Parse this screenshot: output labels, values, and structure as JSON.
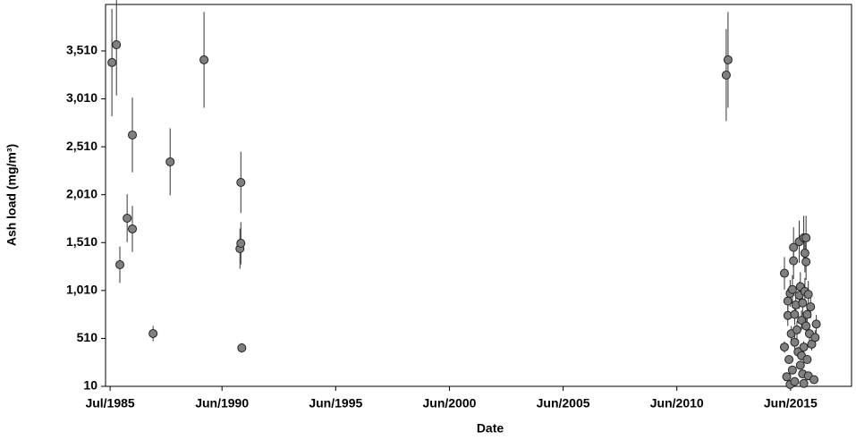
{
  "chart_data": {
    "type": "scatter",
    "x_label": "Date",
    "y_label": "Ash load (mg/m³)",
    "xlim": [
      1985.3,
      2018.1
    ],
    "ylim": [
      10,
      3995
    ],
    "xticks": [
      {
        "value": 1985.5,
        "label": "Jul/1985"
      },
      {
        "value": 1990.42,
        "label": "Jun/1990"
      },
      {
        "value": 1995.42,
        "label": "Jun/1995"
      },
      {
        "value": 2000.42,
        "label": "Jun/2000"
      },
      {
        "value": 2005.42,
        "label": "Jun/2005"
      },
      {
        "value": 2010.42,
        "label": "Jun/2010"
      },
      {
        "value": 2015.42,
        "label": "Jun/2015"
      }
    ],
    "yticks": [
      10,
      510,
      {
        "value": 1010,
        "label": "1,010"
      },
      {
        "value": 1510,
        "label": "1,510"
      },
      {
        "value": 2010,
        "label": "2,010"
      },
      {
        "value": 2510,
        "label": "2,510"
      },
      {
        "value": 3010,
        "label": "3,010"
      },
      {
        "value": 3510,
        "label": "3,510"
      }
    ],
    "series": [
      {
        "color": "#808080",
        "x": [
          1985.58,
          1985.78,
          1985.93,
          1986.25,
          1986.48,
          1986.48,
          1987.39,
          1988.14,
          1989.63,
          1991.25,
          1991.21,
          1991.25,
          1991.29,
          2012.59,
          2012.67,
          2015.15,
          2015.15,
          2015.25,
          2015.3,
          2015.3,
          2015.35,
          2015.4,
          2015.4,
          2015.45,
          2015.5,
          2015.5,
          2015.55,
          2015.55,
          2015.6,
          2015.6,
          2015.6,
          2015.65,
          2015.7,
          2015.75,
          2015.8,
          2015.8,
          2015.85,
          2015.85,
          2015.9,
          2015.9,
          2015.95,
          2015.95,
          2016.0,
          2016.0,
          2016.0,
          2016.05,
          2016.05,
          2016.1,
          2016.1,
          2016.1,
          2016.15,
          2016.15,
          2016.2,
          2016.2,
          2016.25,
          2016.3,
          2016.35,
          2016.45,
          2016.5,
          2016.55
        ],
        "values": [
          3389,
          3575,
          1279,
          1765,
          2633,
          1653,
          561,
          2353,
          3417,
          2138,
          1447,
          1503,
          411,
          3258,
          3417,
          1190,
          420,
          110,
          750,
          900,
          290,
          980,
          30,
          560,
          1020,
          180,
          1460,
          1320,
          760,
          470,
          60,
          860,
          600,
          370,
          1520,
          960,
          1050,
          230,
          700,
          330,
          880,
          140,
          1560,
          420,
          40,
          1400,
          1000,
          1560,
          1310,
          640,
          760,
          290,
          970,
          120,
          560,
          840,
          450,
          80,
          520,
          660
        ],
        "errors": [
          560,
          530,
          190,
          250,
          390,
          240,
          80,
          350,
          500,
          320,
          210,
          220,
          50,
          480,
          500,
          170,
          60,
          20,
          110,
          130,
          45,
          140,
          10,
          80,
          150,
          30,
          210,
          190,
          110,
          70,
          15,
          120,
          90,
          55,
          220,
          140,
          150,
          35,
          100,
          50,
          130,
          25,
          230,
          60,
          10,
          200,
          140,
          230,
          190,
          90,
          110,
          45,
          140,
          20,
          80,
          120,
          65,
          15,
          75,
          95
        ]
      }
    ]
  }
}
